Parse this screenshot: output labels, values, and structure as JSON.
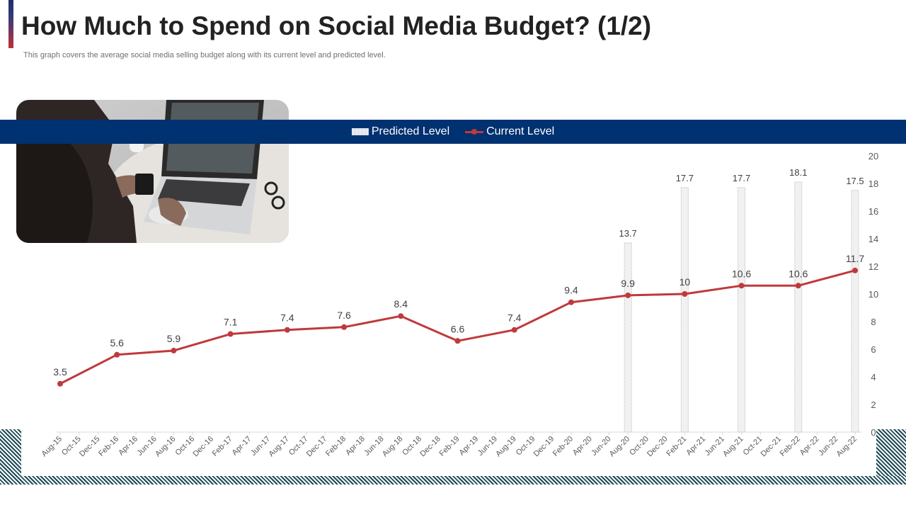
{
  "header": {
    "title": "How Much to Spend on Social Media Budget? (1/2)",
    "subtitle": "This graph covers the average social media selling budget along with its current level and predicted level."
  },
  "photo": {
    "description_icon": "laptop-workspace-photo"
  },
  "colors": {
    "legend_band": "#003170",
    "current_line": "#c0393b",
    "predicted_bar": "#b9b9b9",
    "accent_top": "#1f2f6b",
    "accent_bottom": "#c0313a",
    "hatch": "#1e4a56"
  },
  "chart_data": {
    "type": "line",
    "title": "",
    "xlabel": "",
    "ylabel": "",
    "ylim": [
      0,
      20
    ],
    "y_ticks": [
      0,
      2,
      4,
      6,
      8,
      10,
      12,
      14,
      16,
      18,
      20
    ],
    "y_axis_side": "right",
    "legend_position": "top",
    "categories": [
      "Aug-15",
      "Oct-15",
      "Dec-15",
      "Feb-16",
      "Apr-16",
      "Jun-16",
      "Aug-16",
      "Oct-16",
      "Dec-16",
      "Feb-17",
      "Apr-17",
      "Jun-17",
      "Aug-17",
      "Oct-17",
      "Dec-17",
      "Feb-18",
      "Apr-18",
      "Jun-18",
      "Aug-18",
      "Oct-18",
      "Dec-18",
      "Feb-19",
      "Apr-19",
      "Jun-19",
      "Aug-19",
      "Oct-19",
      "Dec-19",
      "Feb-20",
      "Apr-20",
      "Jun-20",
      "Aug-20",
      "Oct-20",
      "Dec-20",
      "Feb-21",
      "Apr-21",
      "Jun-21",
      "Aug-21",
      "Oct-21",
      "Dec-21",
      "Feb-22",
      "Apr-22",
      "Jun-22",
      "Aug-22"
    ],
    "series": [
      {
        "name": "Predicted Level",
        "type": "bar",
        "points": [
          {
            "x": "Aug-20",
            "y": 13.7
          },
          {
            "x": "Feb-21",
            "y": 17.7
          },
          {
            "x": "Aug-21",
            "y": 17.7
          },
          {
            "x": "Feb-22",
            "y": 18.1
          },
          {
            "x": "Aug-22",
            "y": 17.5
          }
        ]
      },
      {
        "name": "Current Level",
        "type": "line",
        "points": [
          {
            "x": "Aug-15",
            "y": 3.5
          },
          {
            "x": "Feb-16",
            "y": 5.6
          },
          {
            "x": "Aug-16",
            "y": 5.9
          },
          {
            "x": "Feb-17",
            "y": 7.1
          },
          {
            "x": "Aug-17",
            "y": 7.4
          },
          {
            "x": "Feb-18",
            "y": 7.6
          },
          {
            "x": "Aug-18",
            "y": 8.4
          },
          {
            "x": "Feb-19",
            "y": 6.6
          },
          {
            "x": "Aug-19",
            "y": 7.4
          },
          {
            "x": "Feb-20",
            "y": 9.4
          },
          {
            "x": "Aug-20",
            "y": 9.9
          },
          {
            "x": "Feb-21",
            "y": 10
          },
          {
            "x": "Aug-21",
            "y": 10.6
          },
          {
            "x": "Feb-22",
            "y": 10.6
          },
          {
            "x": "Aug-22",
            "y": 11.7
          }
        ]
      }
    ]
  }
}
